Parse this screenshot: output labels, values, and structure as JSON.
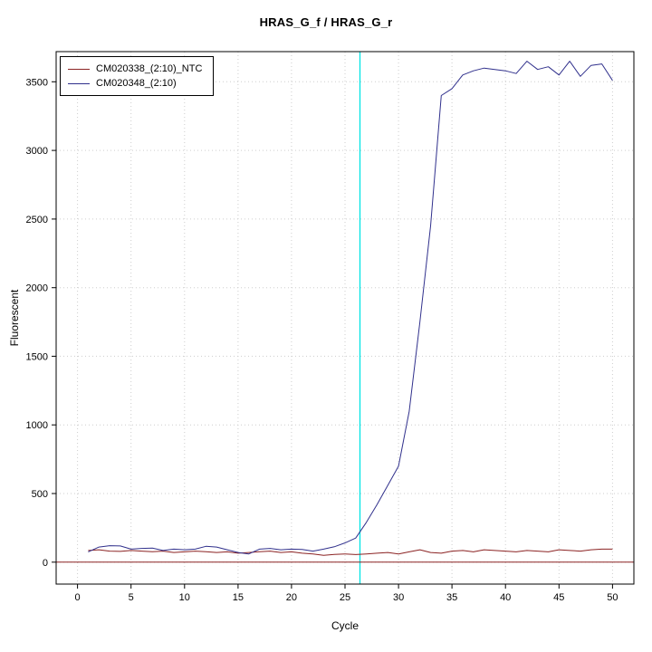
{
  "chart_data": {
    "type": "line",
    "title": "HRAS_G_f / HRAS_G_r",
    "xlabel": "Cycle",
    "ylabel": "Fluorescent",
    "xlim": [
      -2,
      52
    ],
    "ylim": [
      -160,
      3720
    ],
    "x_ticks": [
      0,
      5,
      10,
      15,
      20,
      25,
      30,
      35,
      40,
      45,
      50
    ],
    "y_ticks": [
      0,
      500,
      1000,
      1500,
      2000,
      2500,
      3000,
      3500
    ],
    "grid": true,
    "legend_position": "top-left",
    "x": [
      1,
      2,
      3,
      4,
      5,
      6,
      7,
      8,
      9,
      10,
      11,
      12,
      13,
      14,
      15,
      16,
      17,
      18,
      19,
      20,
      21,
      22,
      23,
      24,
      25,
      26,
      27,
      28,
      29,
      30,
      31,
      32,
      33,
      34,
      35,
      36,
      37,
      38,
      39,
      40,
      41,
      42,
      43,
      44,
      45,
      46,
      47,
      48,
      49,
      50
    ],
    "series": [
      {
        "name": "CM020338_(2:10)_NTC",
        "color": "#8B2323",
        "values": [
          85,
          90,
          80,
          78,
          85,
          80,
          76,
          80,
          70,
          75,
          80,
          76,
          70,
          75,
          65,
          70,
          76,
          80,
          70,
          75,
          65,
          60,
          50,
          56,
          60,
          55,
          60,
          65,
          70,
          60,
          75,
          90,
          70,
          65,
          80,
          85,
          75,
          90,
          85,
          80,
          75,
          85,
          80,
          75,
          90,
          85,
          80,
          90,
          95,
          95
        ]
      },
      {
        "name": "CM020348_(2:10)",
        "color": "#30308C",
        "values": [
          75,
          110,
          120,
          118,
          95,
          100,
          102,
          85,
          95,
          90,
          95,
          115,
          110,
          90,
          70,
          60,
          95,
          100,
          90,
          95,
          92,
          80,
          95,
          112,
          140,
          175,
          290,
          420,
          560,
          700,
          1100,
          1750,
          2450,
          3400,
          3450,
          3550,
          3580,
          3600,
          3590,
          3580,
          3560,
          3650,
          3590,
          3610,
          3550,
          3650,
          3540,
          3620,
          3630,
          3510
        ]
      }
    ],
    "annotations": {
      "threshold_hline": {
        "y": 0,
        "color": "#8B2323"
      },
      "ct_vline": {
        "x": 26.4,
        "color": "#00E5E5"
      }
    }
  }
}
